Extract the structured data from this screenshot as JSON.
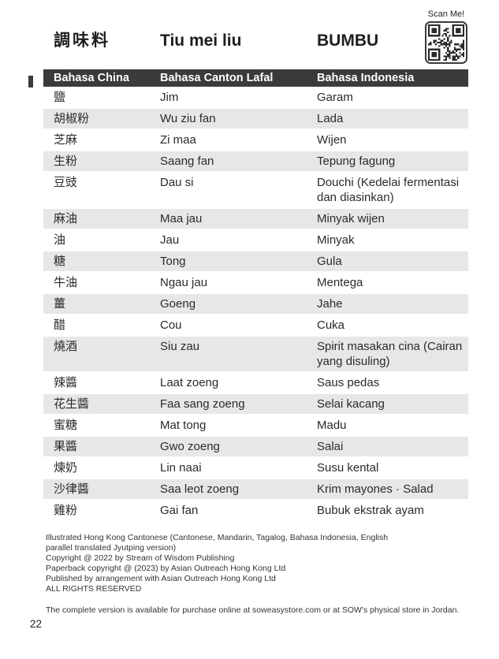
{
  "page_number": "22",
  "header": {
    "title_chinese": "調味料",
    "title_cantonese": "Tiu mei liu",
    "title_indonesian": "BUMBU",
    "scan_label": "Scan Me!"
  },
  "table": {
    "headers": [
      "Bahasa China",
      "Bahasa Canton Lafal",
      "Bahasa Indonesia"
    ],
    "rows": [
      [
        "鹽",
        "Jim",
        "Garam"
      ],
      [
        "胡椒粉",
        "Wu ziu fan",
        "Lada"
      ],
      [
        "芝麻",
        "Zi maa",
        "Wijen"
      ],
      [
        "生粉",
        "Saang fan",
        "Tepung fagung"
      ],
      [
        "豆豉",
        "Dau si",
        "Douchi (Kedelai fermentasi dan diasinkan)"
      ],
      [
        "麻油",
        "Maa jau",
        "Minyak wijen"
      ],
      [
        "油",
        "Jau",
        "Minyak"
      ],
      [
        "糖",
        "Tong",
        "Gula"
      ],
      [
        "牛油",
        "Ngau jau",
        "Mentega"
      ],
      [
        "薑",
        "Goeng",
        "Jahe"
      ],
      [
        "醋",
        "Cou",
        "Cuka"
      ],
      [
        "燒酒",
        "Siu zau",
        "Spirit masakan cina (Cairan yang disuling)"
      ],
      [
        "辣醬",
        "Laat zoeng",
        "Saus pedas"
      ],
      [
        "花生醬",
        "Faa sang zoeng",
        "Selai kacang"
      ],
      [
        "蜜糖",
        "Mat tong",
        "Madu"
      ],
      [
        "果醬",
        "Gwo zoeng",
        "Salai"
      ],
      [
        "煉奶",
        "Lin naai",
        "Susu kental"
      ],
      [
        "沙律醬",
        "Saa leot zoeng",
        "Krim mayones · Salad"
      ],
      [
        "雞粉",
        "Gai fan",
        "Bubuk ekstrak ayam"
      ]
    ]
  },
  "footer": {
    "lines": [
      "Illustrated Hong Kong Cantonese (Cantonese, Mandarin, Tagalog, Bahasa Indonesia, English",
      "parallel translated Jyutping version)",
      "Copyright @ 2022 by Stream of Wisdom Publishing",
      "Paperback copyright @ (2023) by Asian Outreach Hong Kong Ltd",
      "Published by arrangement with Asian Outreach Hong Kong Ltd",
      "ALL RIGHTS RESERVED"
    ],
    "availability": "The complete version is available for purchase online at soweasystore.com or at SOW's physical store in Jordan."
  },
  "colors": {
    "header_bar": "#3b3b3d",
    "stripe": "#e7e7e9",
    "text": "#2b2b2b"
  }
}
